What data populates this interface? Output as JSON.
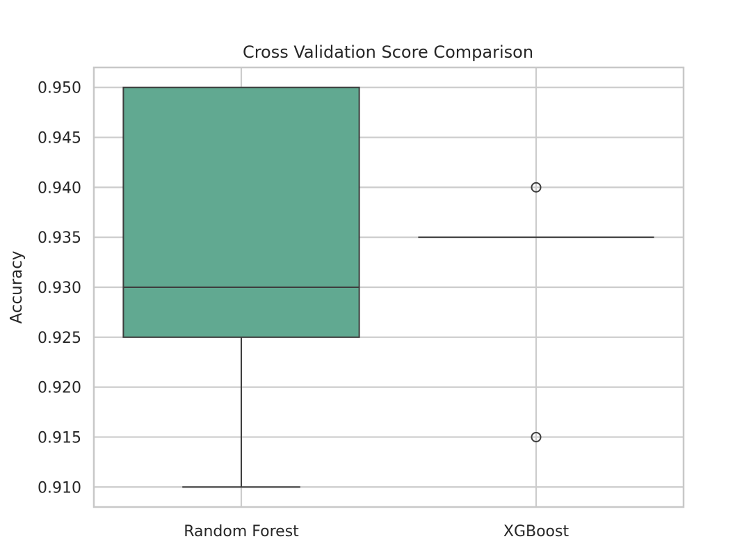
{
  "chart_data": {
    "type": "box",
    "title": "Cross Validation Score Comparison",
    "xlabel": "",
    "ylabel": "Accuracy",
    "categories": [
      "Random Forest",
      "XGBoost"
    ],
    "ylim": [
      0.908,
      0.952
    ],
    "yticks": [
      0.91,
      0.915,
      0.92,
      0.925,
      0.93,
      0.935,
      0.94,
      0.945,
      0.95
    ],
    "ytick_labels": [
      "0.910",
      "0.915",
      "0.920",
      "0.925",
      "0.930",
      "0.935",
      "0.940",
      "0.945",
      "0.950"
    ],
    "grid": true,
    "boxes": [
      {
        "category": "Random Forest",
        "whisker_low": 0.91,
        "q1": 0.925,
        "median": 0.93,
        "q3": 0.95,
        "whisker_high": 0.95,
        "outliers": []
      },
      {
        "category": "XGBoost",
        "whisker_low": 0.935,
        "q1": 0.935,
        "median": 0.935,
        "q3": 0.935,
        "whisker_high": 0.935,
        "outliers": [
          0.94,
          0.915
        ]
      }
    ],
    "colors": {
      "box_fill": "#61a991",
      "line": "#3d3d3d",
      "grid": "#cccccc",
      "frame": "#c8c8c8"
    }
  }
}
